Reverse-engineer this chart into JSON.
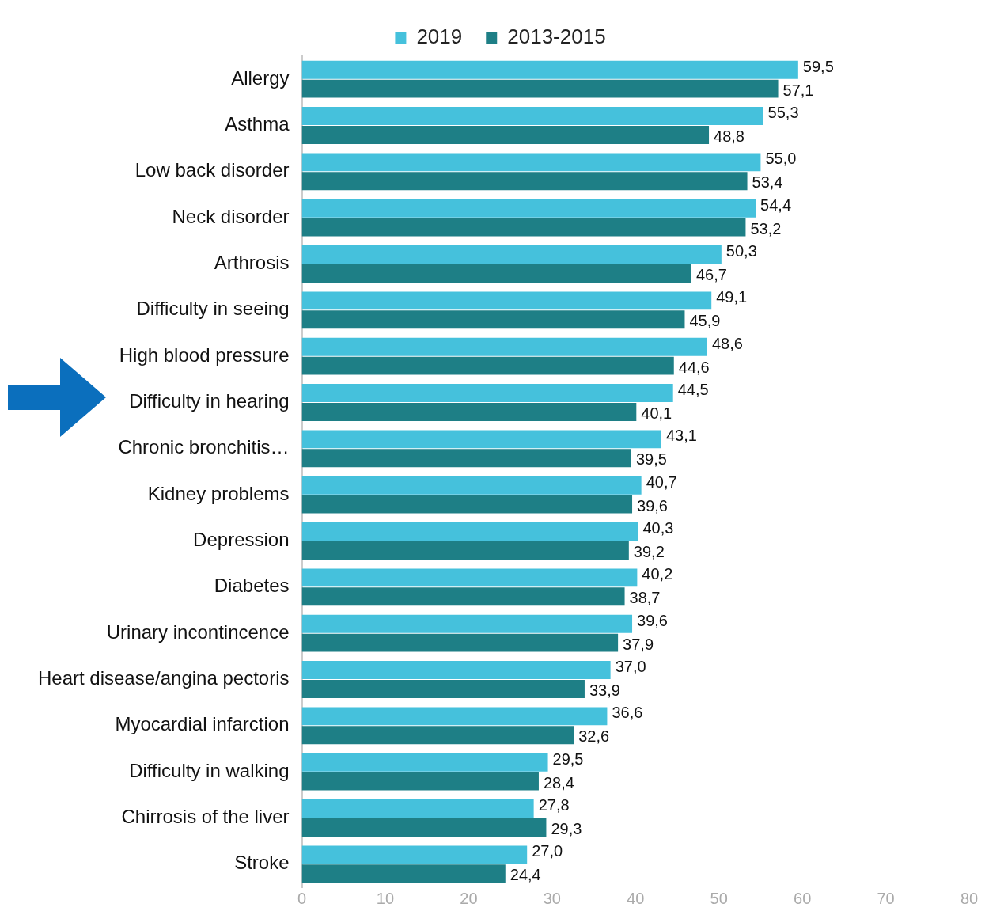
{
  "chart_data": {
    "type": "bar",
    "orientation": "horizontal",
    "categories": [
      "Allergy",
      "Asthma",
      "Low back disorder",
      "Neck disorder",
      "Arthrosis",
      "Difficulty in seeing",
      "High blood pressure",
      "Difficulty in hearing",
      "Chronic bronchitis…",
      "Kidney problems",
      "Depression",
      "Diabetes",
      "Urinary incontincence",
      "Heart disease/angina pectoris",
      "Myocardial infarction",
      "Difficulty in walking",
      "Chirrosis of the liver",
      "Stroke"
    ],
    "series": [
      {
        "name": "2019",
        "color": "#45c1dc",
        "values": [
          59.5,
          55.3,
          55.0,
          54.4,
          50.3,
          49.1,
          48.6,
          44.5,
          43.1,
          40.7,
          40.3,
          40.2,
          39.6,
          37.0,
          36.6,
          29.5,
          27.8,
          27.0
        ],
        "value_labels": [
          "59,5",
          "55,3",
          "55,0",
          "54,4",
          "50,3",
          "49,1",
          "48,6",
          "44,5",
          "43,1",
          "40,7",
          "40,3",
          "40,2",
          "39,6",
          "37,0",
          "36,6",
          "29,5",
          "27,8",
          "27,0"
        ]
      },
      {
        "name": "2013-2015",
        "color": "#1e7f86",
        "values": [
          57.1,
          48.8,
          53.4,
          53.2,
          46.7,
          45.9,
          44.6,
          40.1,
          39.5,
          39.6,
          39.2,
          38.7,
          37.9,
          33.9,
          32.6,
          28.4,
          29.3,
          24.4
        ],
        "value_labels": [
          "57,1",
          "48,8",
          "53,4",
          "53,2",
          "46,7",
          "45,9",
          "44,6",
          "40,1",
          "39,5",
          "39,6",
          "39,2",
          "38,7",
          "37,9",
          "33,9",
          "32,6",
          "28,4",
          "29,3",
          "24,4"
        ]
      }
    ],
    "xlim": [
      0,
      80
    ],
    "xticks": [
      0,
      10,
      20,
      30,
      40,
      50,
      60,
      70,
      80
    ],
    "grid": false,
    "legend": "top"
  }
}
